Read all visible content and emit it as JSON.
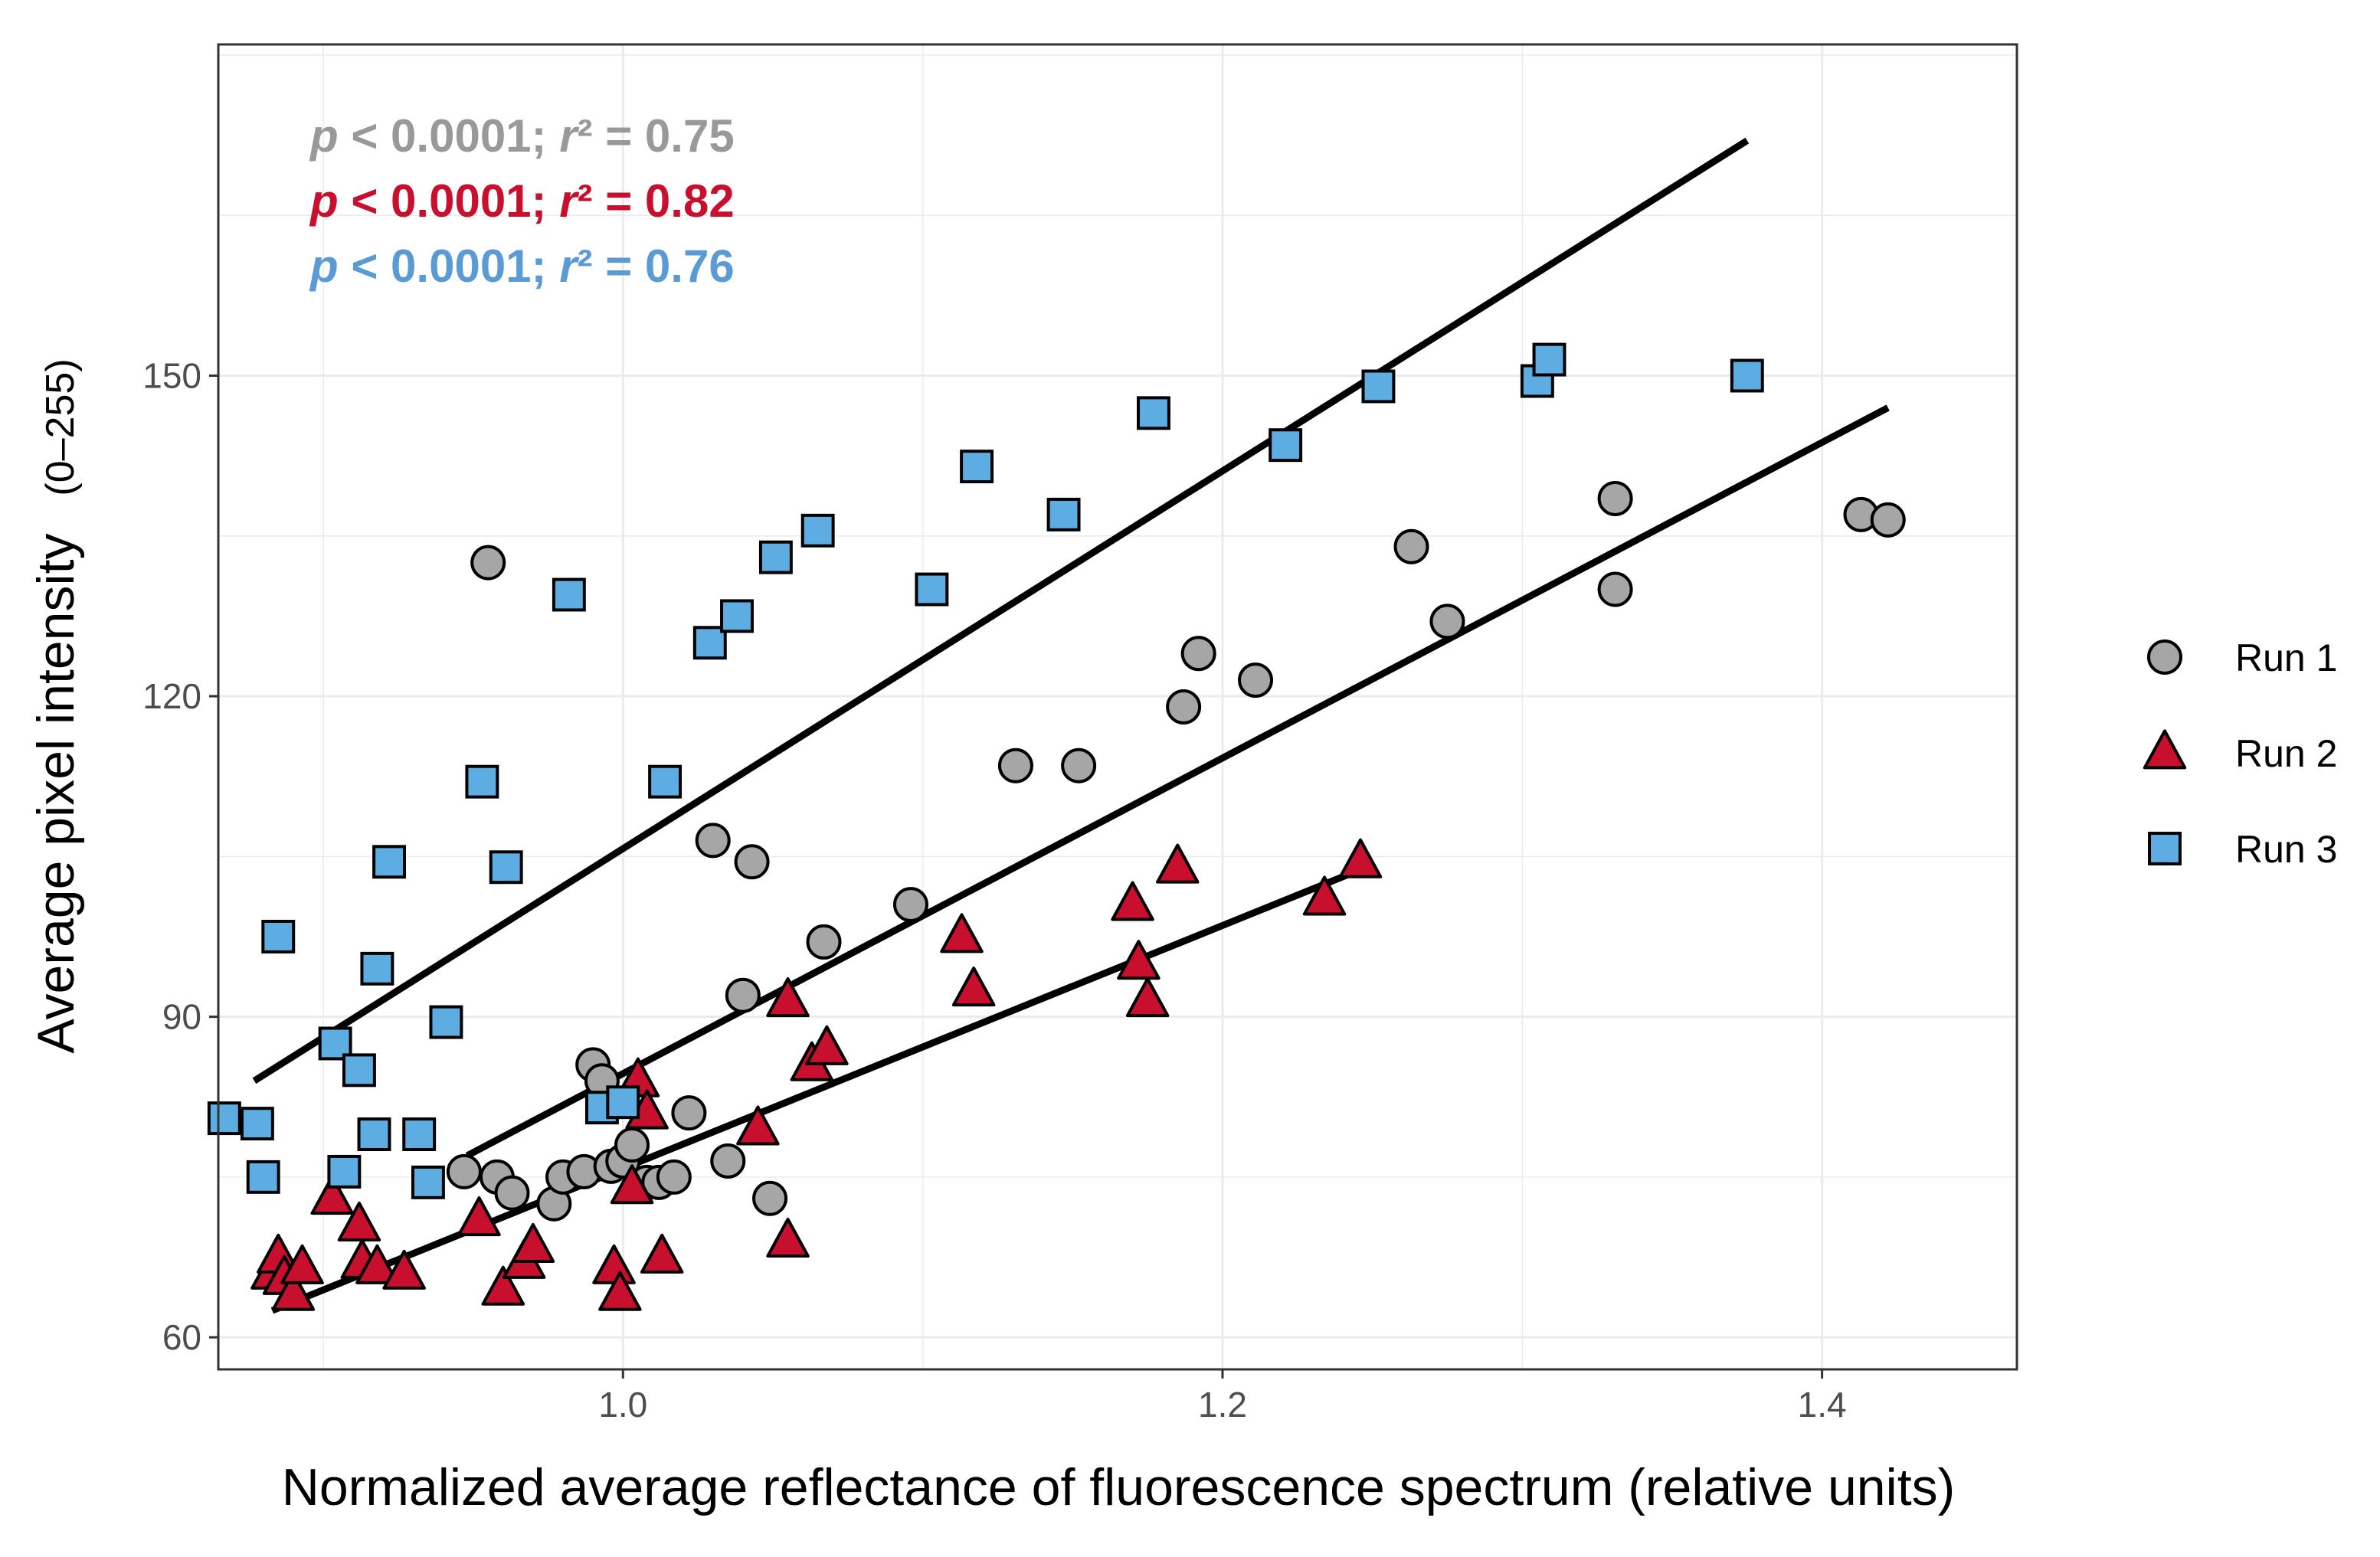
{
  "chart_data": {
    "type": "scatter",
    "title": "",
    "xlabel": "Normalized average reflectance of fluorescence spectrum (relative units)",
    "ylabel": "Average pixel intensity",
    "ylabel_suffix": "(0–255)",
    "xlim": [
      0.865,
      1.465
    ],
    "ylim": [
      57,
      181
    ],
    "xticks": [
      1.0,
      1.2,
      1.4
    ],
    "xtick_labels": [
      "1.0",
      "1.2",
      "1.4"
    ],
    "yticks": [
      60,
      90,
      120,
      150
    ],
    "ytick_labels": [
      "60",
      "90",
      "120",
      "150"
    ],
    "grid": true,
    "legend_position": "right",
    "annotations": [
      {
        "text": "p < 0.0001; r² = 0.75",
        "color": "#999999",
        "series": "Run 1"
      },
      {
        "text": "p < 0.0001; r² = 0.82",
        "color": "#C8102E",
        "series": "Run 2"
      },
      {
        "text": "p < 0.0001; r² = 0.76",
        "color": "#5B9BD5",
        "series": "Run 3"
      }
    ],
    "series": [
      {
        "name": "Run 1",
        "shape": "circle",
        "fill": "#A6A6A6",
        "fit": {
          "x": [
            0.948,
            1.422
          ],
          "y": [
            77,
            147
          ]
        },
        "points": [
          [
            0.955,
            132.5
          ],
          [
            0.947,
            75.5
          ],
          [
            0.958,
            75
          ],
          [
            0.963,
            73.5
          ],
          [
            0.977,
            72.5
          ],
          [
            0.98,
            75
          ],
          [
            0.987,
            75.5
          ],
          [
            0.99,
            85.5
          ],
          [
            0.993,
            84
          ],
          [
            0.996,
            76
          ],
          [
            1.0,
            76.5
          ],
          [
            1.003,
            78
          ],
          [
            1.008,
            74.5
          ],
          [
            1.012,
            74.5
          ],
          [
            1.017,
            75
          ],
          [
            1.022,
            81
          ],
          [
            1.03,
            106.5
          ],
          [
            1.035,
            76.5
          ],
          [
            1.043,
            104.5
          ],
          [
            1.04,
            92
          ],
          [
            1.049,
            73
          ],
          [
            1.067,
            97
          ],
          [
            1.096,
            100.5
          ],
          [
            1.131,
            113.5
          ],
          [
            1.152,
            113.5
          ],
          [
            1.187,
            119
          ],
          [
            1.192,
            124
          ],
          [
            1.211,
            121.5
          ],
          [
            1.263,
            134
          ],
          [
            1.275,
            127
          ],
          [
            1.331,
            138.5
          ],
          [
            1.331,
            130
          ],
          [
            1.413,
            137
          ],
          [
            1.422,
            136.5
          ]
        ]
      },
      {
        "name": "Run 2",
        "shape": "triangle",
        "fill": "#C8102E",
        "fit": {
          "x": [
            0.883,
            1.248
          ],
          "y": [
            62.5,
            104
          ]
        },
        "points": [
          [
            0.883,
            66
          ],
          [
            0.885,
            67.5
          ],
          [
            0.887,
            65.5
          ],
          [
            0.89,
            64
          ],
          [
            0.893,
            66.5
          ],
          [
            0.903,
            73
          ],
          [
            0.912,
            70.5
          ],
          [
            0.913,
            67
          ],
          [
            0.918,
            66.5
          ],
          [
            0.927,
            66
          ],
          [
            0.952,
            71
          ],
          [
            0.96,
            64.5
          ],
          [
            0.967,
            67
          ],
          [
            0.97,
            68.5
          ],
          [
            0.997,
            66.5
          ],
          [
            0.999,
            64
          ],
          [
            1.003,
            74
          ],
          [
            1.005,
            84
          ],
          [
            1.008,
            81
          ],
          [
            1.013,
            67.5
          ],
          [
            1.045,
            79.5
          ],
          [
            1.055,
            69
          ],
          [
            1.055,
            91.5
          ],
          [
            1.063,
            85.5
          ],
          [
            1.068,
            87
          ],
          [
            1.113,
            97.5
          ],
          [
            1.117,
            92.5
          ],
          [
            1.17,
            100.5
          ],
          [
            1.172,
            95
          ],
          [
            1.175,
            91.5
          ],
          [
            1.185,
            104
          ],
          [
            1.234,
            101
          ],
          [
            1.246,
            104.5
          ]
        ]
      },
      {
        "name": "Run 3",
        "shape": "square",
        "fill": "#5DADE2",
        "fit": {
          "x": [
            0.877,
            1.375
          ],
          "y": [
            84,
            172
          ]
        },
        "points": [
          [
            0.867,
            80.5
          ],
          [
            0.878,
            80
          ],
          [
            0.88,
            75
          ],
          [
            0.885,
            97.5
          ],
          [
            0.904,
            87.5
          ],
          [
            0.907,
            75.5
          ],
          [
            0.912,
            85
          ],
          [
            0.917,
            79
          ],
          [
            0.918,
            94.5
          ],
          [
            0.922,
            104.5
          ],
          [
            0.932,
            79
          ],
          [
            0.935,
            74.5
          ],
          [
            0.941,
            89.5
          ],
          [
            0.953,
            112
          ],
          [
            0.961,
            104
          ],
          [
            0.982,
            129.5
          ],
          [
            0.993,
            81.5
          ],
          [
            1.0,
            82
          ],
          [
            1.014,
            112
          ],
          [
            1.029,
            125
          ],
          [
            1.038,
            127.5
          ],
          [
            1.051,
            133
          ],
          [
            1.065,
            135.5
          ],
          [
            1.103,
            130
          ],
          [
            1.118,
            141.5
          ],
          [
            1.147,
            137
          ],
          [
            1.177,
            146.5
          ],
          [
            1.221,
            143.5
          ],
          [
            1.252,
            149
          ],
          [
            1.305,
            149.5
          ],
          [
            1.309,
            151.5
          ],
          [
            1.375,
            150
          ]
        ]
      }
    ]
  }
}
